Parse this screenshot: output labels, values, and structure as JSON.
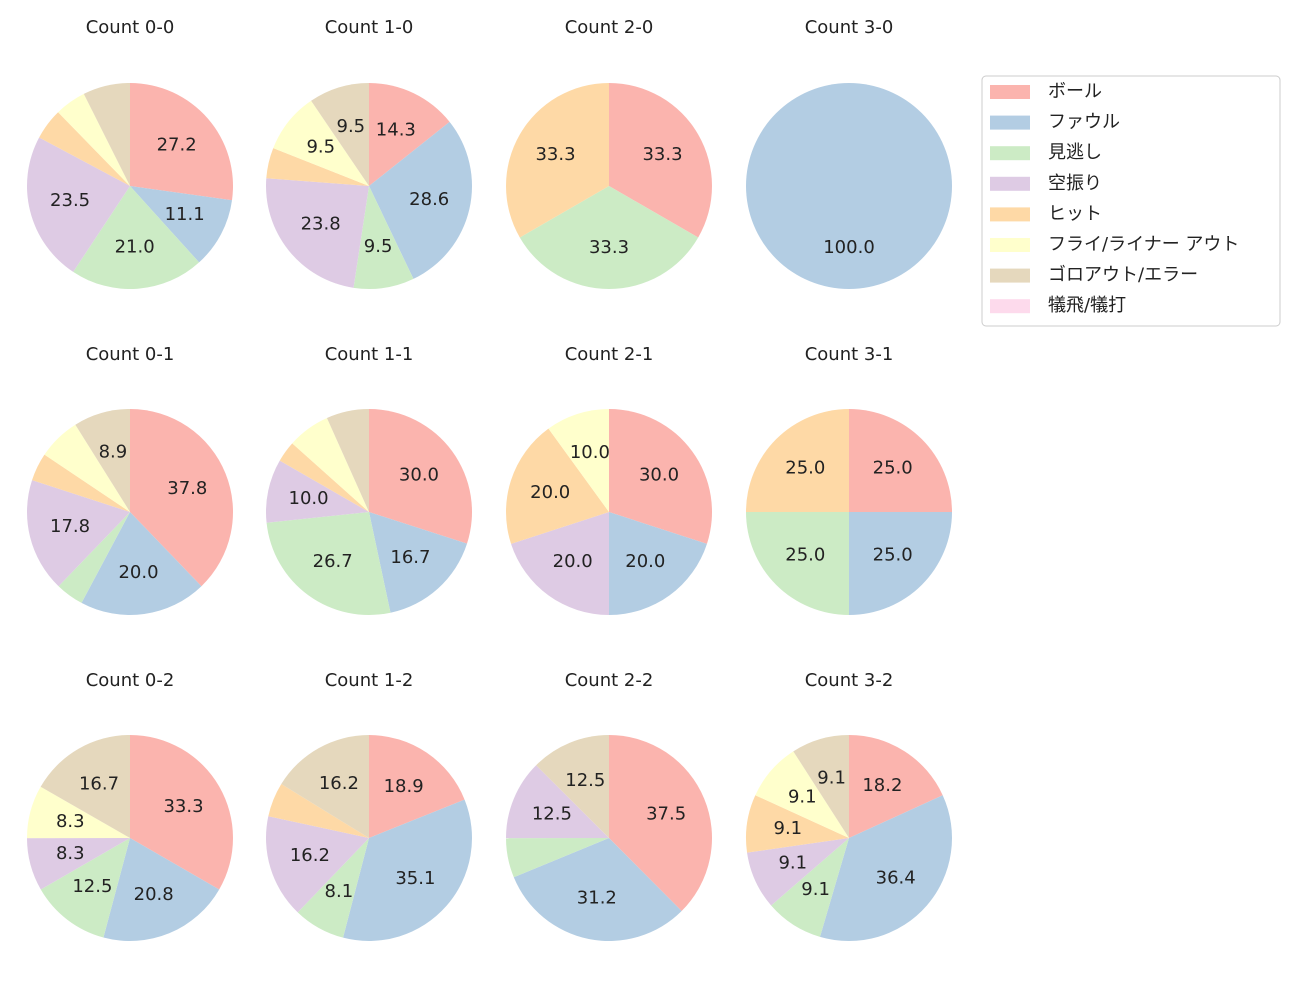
{
  "legend": {
    "entries": [
      "ボール",
      "ファウル",
      "見逃し",
      "空振り",
      "ヒット",
      "フライ/ライナー アウト",
      "ゴロアウト/エラー",
      "犠飛/犠打"
    ],
    "colors": [
      "#fbb4ae",
      "#b3cde3",
      "#ccebc5",
      "#decbe4",
      "#fed9a6",
      "#ffffcc",
      "#e5d8bd",
      "#fddaec"
    ],
    "loc": "upper right"
  },
  "chart_data": [
    {
      "type": "pie",
      "title": "Count 0-0",
      "values": [
        27.2,
        11.1,
        21.0,
        23.5,
        4.9,
        4.9,
        7.4,
        0
      ],
      "value_labels": [
        "27.2",
        "11.1",
        "21.0",
        "23.5",
        null,
        null,
        null,
        null
      ]
    },
    {
      "type": "pie",
      "title": "Count 1-0",
      "values": [
        14.3,
        28.6,
        9.5,
        23.8,
        4.8,
        9.5,
        9.5,
        0
      ],
      "value_labels": [
        "14.3",
        "28.6",
        "9.5",
        "23.8",
        null,
        "9.5",
        "9.5",
        null
      ]
    },
    {
      "type": "pie",
      "title": "Count 2-0",
      "values": [
        33.3,
        0,
        33.3,
        0,
        33.3,
        0,
        0,
        0
      ],
      "value_labels": [
        "33.3",
        null,
        "33.3",
        null,
        "33.3",
        null,
        null,
        null
      ]
    },
    {
      "type": "pie",
      "title": "Count 3-0",
      "values": [
        0,
        100.0,
        0,
        0,
        0,
        0,
        0,
        0
      ],
      "value_labels": [
        null,
        "100.0",
        null,
        null,
        null,
        null,
        null,
        null
      ]
    },
    {
      "type": "pie",
      "title": "Count 0-1",
      "values": [
        37.8,
        20.0,
        4.4,
        17.8,
        4.4,
        6.7,
        8.9,
        0
      ],
      "value_labels": [
        "37.8",
        "20.0",
        null,
        "17.8",
        null,
        null,
        "8.9",
        null
      ]
    },
    {
      "type": "pie",
      "title": "Count 1-1",
      "values": [
        30.0,
        16.7,
        26.7,
        10.0,
        3.3,
        6.7,
        6.7,
        0
      ],
      "value_labels": [
        "30.0",
        "16.7",
        "26.7",
        "10.0",
        null,
        null,
        null,
        null
      ]
    },
    {
      "type": "pie",
      "title": "Count 2-1",
      "values": [
        30.0,
        20.0,
        0,
        20.0,
        20.0,
        10.0,
        0,
        0
      ],
      "value_labels": [
        "30.0",
        "20.0",
        null,
        "20.0",
        "20.0",
        "10.0",
        null,
        null
      ]
    },
    {
      "type": "pie",
      "title": "Count 3-1",
      "values": [
        25.0,
        25.0,
        25.0,
        0,
        25.0,
        0,
        0,
        0
      ],
      "value_labels": [
        "25.0",
        "25.0",
        "25.0",
        null,
        "25.0",
        null,
        null,
        null
      ]
    },
    {
      "type": "pie",
      "title": "Count 0-2",
      "values": [
        33.3,
        20.8,
        12.5,
        8.3,
        0,
        8.3,
        16.7,
        0
      ],
      "value_labels": [
        "33.3",
        "20.8",
        "12.5",
        "8.3",
        null,
        "8.3",
        "16.7",
        null
      ]
    },
    {
      "type": "pie",
      "title": "Count 1-2",
      "values": [
        18.9,
        35.1,
        8.1,
        16.2,
        5.4,
        0,
        16.2,
        0
      ],
      "value_labels": [
        "18.9",
        "35.1",
        "8.1",
        "16.2",
        null,
        null,
        "16.2",
        null
      ]
    },
    {
      "type": "pie",
      "title": "Count 2-2",
      "values": [
        37.5,
        31.2,
        6.2,
        12.5,
        0,
        0,
        12.5,
        0
      ],
      "value_labels": [
        "37.5",
        "31.2",
        null,
        "12.5",
        null,
        null,
        "12.5",
        null
      ]
    },
    {
      "type": "pie",
      "title": "Count 3-2",
      "values": [
        18.2,
        36.4,
        9.1,
        9.1,
        9.1,
        9.1,
        9.1,
        0
      ],
      "value_labels": [
        "18.2",
        "36.4",
        "9.1",
        "9.1",
        "9.1",
        "9.1",
        "9.1",
        null
      ]
    }
  ]
}
